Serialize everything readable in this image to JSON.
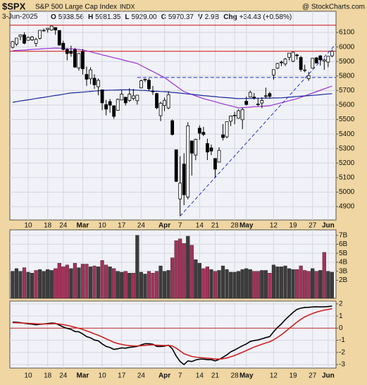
{
  "chart_data": [
    {
      "type": "candlestick",
      "title": "$SPX",
      "subtitle": "S&P 500 Large Cap Index",
      "exchange": "INDX",
      "source": "@ StockCharts.com",
      "date": "3-Jun-2025",
      "quote": [
        {
          "label": "O",
          "text": "5938.56"
        },
        {
          "label": "H",
          "text": "5981.35"
        },
        {
          "label": "L",
          "text": "5929.00"
        },
        {
          "label": "C",
          "text": "5970.37"
        },
        {
          "label": "V",
          "text": "2.9B"
        },
        {
          "label": "Chg",
          "text": "+34.43 (+0.58%)"
        }
      ],
      "categories": [
        null,
        null,
        null,
        null,
        "10",
        null,
        null,
        null,
        null,
        "18",
        null,
        null,
        null,
        "24",
        null,
        null,
        null,
        null,
        "Mar",
        null,
        null,
        null,
        null,
        "10",
        null,
        null,
        null,
        null,
        "17",
        null,
        null,
        null,
        null,
        "24",
        null,
        null,
        null,
        null,
        null,
        "Apr",
        null,
        null,
        null,
        "7",
        null,
        null,
        null,
        null,
        "14",
        null,
        null,
        null,
        "21",
        null,
        null,
        null,
        null,
        "28",
        null,
        null,
        "May",
        null,
        null,
        null,
        null,
        null,
        null,
        "12",
        null,
        null,
        null,
        null,
        "19",
        null,
        null,
        null,
        null,
        "27",
        null,
        null,
        null,
        "Jun",
        null
      ],
      "open": [
        5998,
        6020,
        6072,
        6083,
        6046,
        6049,
        6025,
        6060,
        6115,
        6121,
        6117,
        6134,
        6114,
        6026,
        5982,
        5971,
        5981,
        5856,
        5968,
        5811,
        5781,
        5785,
        5726,
        5705,
        5603,
        5624,
        5595,
        5563,
        5635,
        5654,
        5632,
        5646,
        5630,
        5718,
        5776,
        5771,
        5696,
        5679,
        5527,
        5597,
        5580,
        5492,
        5292,
        4953,
        5193,
        4966,
        5353,
        5255,
        5441,
        5412,
        5335,
        5305,
        5232,
        5207,
        5395,
        5381,
        5489,
        5529,
        5509,
        5499,
        5626,
        5656,
        5655,
        5606,
        5614,
        5663,
        5679,
        5807,
        5854,
        5896,
        5883,
        5929,
        5902,
        5945,
        5928,
        5842,
        5782,
        5855,
        5925,
        5939,
        5903,
        5896,
        5939
      ],
      "high": [
        6042,
        6062,
        6084,
        6101,
        6073,
        6076,
        6063,
        6116,
        6127,
        6129,
        6147,
        6134,
        6115,
        6043,
        5992,
        6009,
        5994,
        5959,
        5986,
        5865,
        5860,
        5812,
        5783,
        5705,
        5636,
        5642,
        5597,
        5645,
        5703,
        5654,
        5715,
        5711,
        5670,
        5775,
        5784,
        5783,
        5732,
        5685,
        5623,
        5651,
        5695,
        5501,
        5293,
        5247,
        5268,
        5481,
        5353,
        5369,
        5460,
        5450,
        5368,
        5328,
        5232,
        5309,
        5469,
        5486,
        5528,
        5553,
        5571,
        5581,
        5658,
        5700,
        5683,
        5649,
        5654,
        5720,
        5691,
        5845,
        5891,
        5906,
        5924,
        5959,
        5968,
        5953,
        5939,
        5878,
        5829,
        5924,
        5931,
        5944,
        5922,
        5937,
        5981
      ],
      "low": [
        5990,
        6007,
        6046,
        6019,
        6044,
        6042,
        6003,
        6051,
        6107,
        6099,
        6111,
        6084,
        6009,
        5977,
        5908,
        5933,
        5858,
        5837,
        5810,
        5732,
        5743,
        5711,
        5667,
        5565,
        5529,
        5547,
        5505,
        5563,
        5633,
        5597,
        5622,
        5632,
        5603,
        5718,
        5759,
        5695,
        5670,
        5572,
        5489,
        5558,
        5571,
        5390,
        5070,
        4835,
        4910,
        4950,
        5115,
        5220,
        5359,
        5386,
        5221,
        5255,
        5101,
        5207,
        5356,
        5371,
        5455,
        5468,
        5505,
        5434,
        5597,
        5655,
        5638,
        5590,
        5579,
        5644,
        5644,
        5775,
        5847,
        5868,
        5868,
        5908,
        5895,
        5913,
        5830,
        5826,
        5767,
        5854,
        5886,
        5872,
        5843,
        5861,
        5929
      ],
      "close": [
        6037,
        6061,
        6083,
        6026,
        6066,
        6069,
        6052,
        6115,
        6115,
        6129,
        6144,
        6117,
        6013,
        5983,
        5955,
        5956,
        5861,
        5955,
        5850,
        5778,
        5842,
        5739,
        5770,
        5615,
        5572,
        5599,
        5522,
        5639,
        5675,
        5615,
        5675,
        5663,
        5668,
        5767,
        5777,
        5712,
        5693,
        5581,
        5612,
        5633,
        5671,
        5397,
        5074,
        5062,
        4982,
        5457,
        5268,
        5363,
        5406,
        5397,
        5276,
        5283,
        5158,
        5288,
        5376,
        5485,
        5525,
        5529,
        5561,
        5569,
        5604,
        5687,
        5650,
        5607,
        5631,
        5664,
        5660,
        5844,
        5886,
        5893,
        5917,
        5958,
        5964,
        5940,
        5845,
        5842,
        5803,
        5922,
        5889,
        5912,
        5911,
        5936,
        5970
      ],
      "candle_color": "#000000",
      "series": [
        {
          "color": "#9933cc",
          "values": [
            5974,
            5976,
            5978,
            5979,
            5981,
            5983,
            5985,
            5986,
            5988,
            5990,
            5991,
            5993,
            5992,
            5990,
            5988,
            5987,
            5985,
            5983,
            5980,
            5973,
            5967,
            5960,
            5953,
            5946,
            5940,
            5933,
            5926,
            5920,
            5913,
            5906,
            5899,
            5893,
            5886,
            5872,
            5858,
            5844,
            5831,
            5817,
            5803,
            5789,
            5770,
            5750,
            5731,
            5711,
            5692,
            5682,
            5673,
            5663,
            5654,
            5644,
            5637,
            5630,
            5623,
            5615,
            5608,
            5601,
            5594,
            5587,
            5580,
            5582,
            5584,
            5586,
            5588,
            5589,
            5591,
            5593,
            5595,
            5602,
            5609,
            5616,
            5623,
            5630,
            5637,
            5644,
            5654,
            5663,
            5673,
            5683,
            5692,
            5702,
            5712,
            5721,
            5731
          ]
        },
        {
          "color": "#1a2a99",
          "values": [
            5619,
            5623,
            5628,
            5632,
            5636,
            5640,
            5645,
            5649,
            5653,
            5657,
            5662,
            5666,
            5670,
            5674,
            5679,
            5683,
            5685,
            5687,
            5689,
            5691,
            5694,
            5696,
            5698,
            5700,
            5702,
            5703,
            5703,
            5704,
            5705,
            5705,
            5706,
            5704,
            5703,
            5701,
            5700,
            5698,
            5696,
            5695,
            5693,
            5692,
            5690,
            5687,
            5685,
            5682,
            5679,
            5676,
            5674,
            5671,
            5668,
            5665,
            5663,
            5660,
            5658,
            5655,
            5653,
            5651,
            5649,
            5646,
            5644,
            5645,
            5645,
            5646,
            5646,
            5647,
            5647,
            5648,
            5648,
            5649,
            5649,
            5650,
            5652,
            5654,
            5656,
            5659,
            5661,
            5663,
            5665,
            5667,
            5669,
            5671,
            5674,
            5676,
            5678
          ]
        }
      ],
      "hlines": [
        {
          "value": 6150,
          "color": "#cc1111"
        },
        {
          "value": 5970,
          "color": "#cc1111"
        },
        {
          "value": 5790,
          "start": 32,
          "color": "#2233cc",
          "dashed": true
        }
      ],
      "trendline": {
        "x": [
          43,
          83
        ],
        "y": [
          4835,
          6020
        ],
        "color": "#2233cc"
      },
      "ylim": [
        4808,
        6246
      ],
      "yticks": [
        4900,
        5000,
        5100,
        5200,
        5300,
        5400,
        5500,
        5600,
        5700,
        5800,
        5900,
        6000,
        6100
      ],
      "grid": true
    },
    {
      "type": "bar",
      "values": [
        3.0,
        3.3,
        3.0,
        3.4,
        2.9,
        2.8,
        3.1,
        3.2,
        3.0,
        3.2,
        3.1,
        3.3,
        3.9,
        3.5,
        3.7,
        3.3,
        3.9,
        3.4,
        3.8,
        3.8,
        3.5,
        3.6,
        3.5,
        4.2,
        3.7,
        3.5,
        3.3,
        3.0,
        2.9,
        3.0,
        2.8,
        2.8,
        7.0,
        2.9,
        2.7,
        3.0,
        2.8,
        3.0,
        3.6,
        3.0,
        3.1,
        4.5,
        6.4,
        6.6,
        6.1,
        6.9,
        5.9,
        4.3,
        3.9,
        3.3,
        3.5,
        3.2,
        3.0,
        3.1,
        3.6,
        3.2,
        2.9,
        2.9,
        3.0,
        3.2,
        3.3,
        3.2,
        3.0,
        3.0,
        3.1,
        3.1,
        2.8,
        3.7,
        3.5,
        3.5,
        3.6,
        3.3,
        3.2,
        3.2,
        3.6,
        3.1,
        3.0,
        3.3,
        3.0,
        3.1,
        5.1,
        3.0,
        2.9
      ],
      "up_color": "#3c3c3c",
      "down_color": "#a8305a",
      "ylim": [
        0,
        7.6
      ],
      "yticks": [
        {
          "value": 2,
          "label": "2B"
        },
        {
          "value": 3,
          "label": "3B"
        },
        {
          "value": 4,
          "label": "4B"
        },
        {
          "value": 5,
          "label": "5B"
        },
        {
          "value": 6,
          "label": "6B"
        },
        {
          "value": 7,
          "label": "7B"
        }
      ],
      "grid": true
    },
    {
      "type": "line",
      "series": [
        {
          "color": "#000000",
          "values": [
            0.5,
            0.48,
            0.46,
            0.4,
            0.36,
            0.33,
            0.28,
            0.32,
            0.35,
            0.38,
            0.42,
            0.4,
            0.25,
            0.1,
            -0.02,
            -0.1,
            -0.28,
            -0.3,
            -0.48,
            -0.7,
            -0.8,
            -0.98,
            -1.05,
            -1.3,
            -1.5,
            -1.6,
            -1.75,
            -1.7,
            -1.62,
            -1.65,
            -1.58,
            -1.55,
            -1.5,
            -1.38,
            -1.28,
            -1.28,
            -1.32,
            -1.5,
            -1.52,
            -1.48,
            -1.4,
            -1.7,
            -2.3,
            -2.75,
            -3.0,
            -2.7,
            -2.75,
            -2.62,
            -2.55,
            -2.55,
            -2.6,
            -2.6,
            -2.7,
            -2.58,
            -2.4,
            -2.2,
            -1.95,
            -1.8,
            -1.62,
            -1.45,
            -1.3,
            -1.1,
            -1.02,
            -0.98,
            -0.88,
            -0.78,
            -0.7,
            -0.3,
            0.05,
            0.35,
            0.7,
            1.0,
            1.3,
            1.55,
            1.65,
            1.7,
            1.72,
            1.75,
            1.76,
            1.75,
            1.76,
            1.78,
            1.82
          ]
        },
        {
          "color": "#cc2222",
          "values": [
            0.45,
            0.44,
            0.43,
            0.42,
            0.4,
            0.38,
            0.36,
            0.35,
            0.35,
            0.35,
            0.36,
            0.37,
            0.34,
            0.29,
            0.23,
            0.16,
            0.07,
            -0.01,
            -0.1,
            -0.22,
            -0.34,
            -0.47,
            -0.59,
            -0.73,
            -0.88,
            -1.02,
            -1.17,
            -1.27,
            -1.34,
            -1.4,
            -1.44,
            -1.46,
            -1.47,
            -1.45,
            -1.42,
            -1.39,
            -1.38,
            -1.4,
            -1.42,
            -1.43,
            -1.42,
            -1.48,
            -1.65,
            -1.87,
            -2.1,
            -2.22,
            -2.33,
            -2.39,
            -2.42,
            -2.45,
            -2.48,
            -2.5,
            -2.54,
            -2.55,
            -2.52,
            -2.46,
            -2.36,
            -2.25,
            -2.12,
            -1.99,
            -1.85,
            -1.7,
            -1.56,
            -1.44,
            -1.33,
            -1.22,
            -1.12,
            -0.96,
            -0.76,
            -0.54,
            -0.29,
            -0.03,
            0.24,
            0.5,
            0.73,
            0.92,
            1.08,
            1.21,
            1.32,
            1.41,
            1.48,
            1.54,
            1.6
          ]
        }
      ],
      "hlines": [
        {
          "value": 0,
          "color": "#c03030"
        }
      ],
      "ylim": [
        -3.29,
        2.23
      ],
      "yticks": [
        -3,
        -2,
        -1,
        0,
        1,
        2
      ],
      "grid": true
    }
  ]
}
